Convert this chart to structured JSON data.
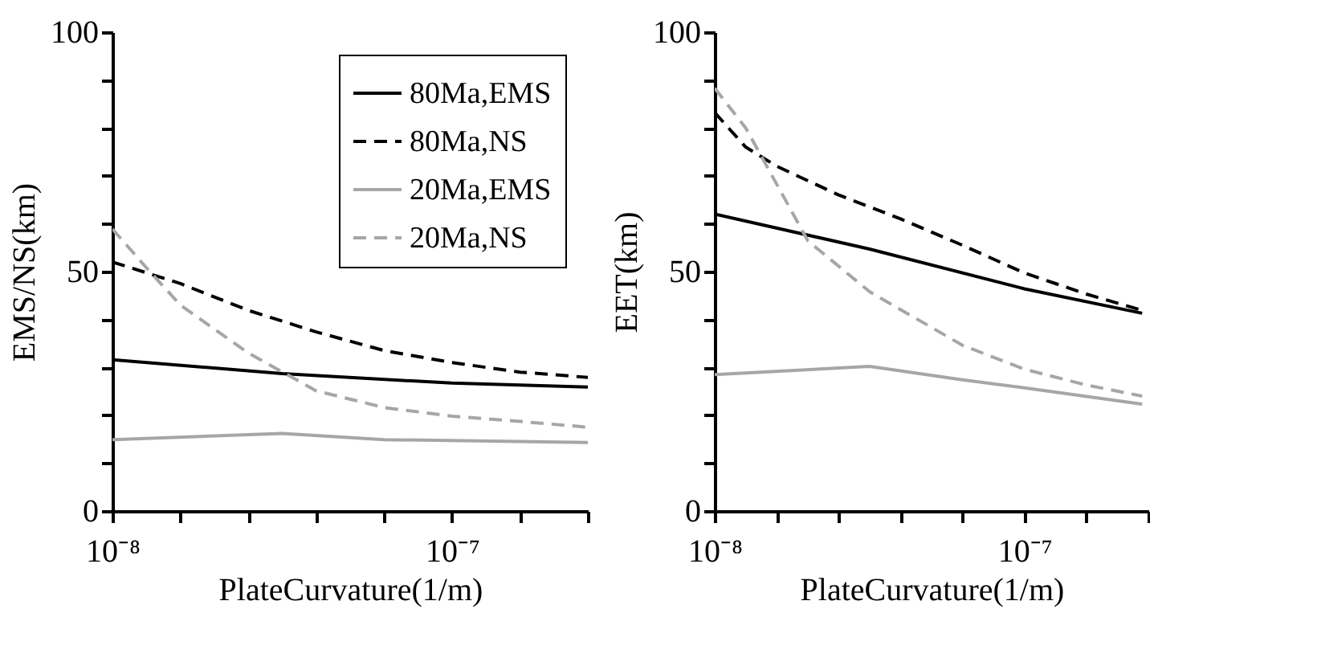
{
  "chart_data": [
    {
      "type": "line",
      "xlabel": "PlateCurvature(1/m)",
      "ylabel": "EMS/NS(km)",
      "log": "x",
      "grid": false,
      "legend": "top right",
      "xlim": [
        1e-08,
        2.512e-07
      ],
      "xticks": [
        {
          "value": 1e-08,
          "label": "10⁻⁸"
        },
        {
          "value": 1.585e-08,
          "label": null
        },
        {
          "value": 2.512e-08,
          "label": null
        },
        {
          "value": 3.981e-08,
          "label": null
        },
        {
          "value": 6.31e-08,
          "label": null
        },
        {
          "value": 1e-07,
          "label": "10⁻⁷"
        },
        {
          "value": 1.585e-07,
          "label": null
        },
        {
          "value": 2.512e-07,
          "label": null
        }
      ],
      "ylim": [
        0,
        100
      ],
      "yticks": [
        0,
        {
          "value": 10,
          "label": null
        },
        {
          "value": 20,
          "label": null
        },
        {
          "value": 30,
          "label": null
        },
        {
          "value": 40,
          "label": null
        },
        50,
        {
          "value": 60,
          "label": null
        },
        {
          "value": 70,
          "label": null
        },
        {
          "value": 80,
          "label": null
        },
        {
          "value": 90,
          "label": null
        },
        100
      ],
      "series": [
        {
          "name": "80Ma,EMS",
          "color": "#000000",
          "line_style": "solid",
          "x": [
            1e-08,
            3.162e-08,
            1e-07,
            2.512e-07
          ],
          "values": [
            31.6,
            28.7,
            26.7,
            25.9
          ]
        },
        {
          "name": "80Ma,NS",
          "color": "#000000",
          "line_style": "dashed",
          "x": [
            1e-08,
            1.585e-08,
            2.512e-08,
            3.981e-08,
            6.31e-08,
            1e-07,
            1.585e-07,
            2.512e-07
          ],
          "values": [
            52,
            47.5,
            41.9,
            37.4,
            33.5,
            31,
            29,
            27.9
          ]
        },
        {
          "name": "20Ma,EMS",
          "color": "#a6a6a6",
          "line_style": "solid",
          "x": [
            1e-08,
            3.162e-08,
            6.31e-08,
            2.512e-07
          ],
          "values": [
            14.9,
            16.2,
            14.9,
            14.3
          ]
        },
        {
          "name": "20Ma,NS",
          "color": "#a6a6a6",
          "line_style": "dashed",
          "x": [
            1e-08,
            1.259e-08,
            1.585e-08,
            2.512e-08,
            3.981e-08,
            6.31e-08,
            1e-07,
            1.585e-07,
            2.512e-07
          ],
          "values": [
            58.9,
            50.8,
            43,
            33,
            25.1,
            21.6,
            19.8,
            18.7,
            17.5
          ]
        }
      ]
    },
    {
      "type": "line",
      "xlabel": "PlateCurvature(1/m)",
      "ylabel": "EET(km)",
      "log": "x",
      "grid": false,
      "xlim": [
        1e-08,
        2.512e-07
      ],
      "xticks": [
        {
          "value": 1e-08,
          "label": "10⁻⁸"
        },
        {
          "value": 1.585e-08,
          "label": null
        },
        {
          "value": 2.512e-08,
          "label": null
        },
        {
          "value": 3.981e-08,
          "label": null
        },
        {
          "value": 6.31e-08,
          "label": null
        },
        {
          "value": 1e-07,
          "label": "10⁻⁷"
        },
        {
          "value": 1.585e-07,
          "label": null
        },
        {
          "value": 2.512e-07,
          "label": null
        }
      ],
      "ylim": [
        0,
        100
      ],
      "yticks": [
        0,
        {
          "value": 10,
          "label": null
        },
        {
          "value": 20,
          "label": null
        },
        {
          "value": 30,
          "label": null
        },
        {
          "value": 40,
          "label": null
        },
        50,
        {
          "value": 60,
          "label": null
        },
        {
          "value": 70,
          "label": null
        },
        {
          "value": 80,
          "label": null
        },
        {
          "value": 90,
          "label": null
        },
        100
      ],
      "series": [
        {
          "color": "#000000",
          "line_style": "solid",
          "x": [
            1e-08,
            3.162e-08,
            1e-07,
            2.399e-07
          ],
          "values": [
            62,
            54.7,
            46.4,
            41.3
          ]
        },
        {
          "color": "#000000",
          "line_style": "dashed",
          "x": [
            1e-08,
            1.259e-08,
            1.585e-08,
            2.512e-08,
            3.981e-08,
            6.31e-08,
            1e-07,
            1.585e-07,
            2.399e-07
          ],
          "values": [
            83.2,
            76,
            72,
            66,
            61,
            55.5,
            49.7,
            45.3,
            41.9
          ]
        },
        {
          "color": "#a6a6a6",
          "line_style": "solid",
          "x": [
            1e-08,
            3.162e-08,
            6.31e-08,
            1e-07,
            2.399e-07
          ],
          "values": [
            28.5,
            30.2,
            27.4,
            25.7,
            22.3
          ]
        },
        {
          "color": "#a6a6a6",
          "line_style": "dashed",
          "x": [
            1e-08,
            1.259e-08,
            2e-08,
            3.162e-08,
            6.31e-08,
            1e-07,
            1.585e-07,
            2.399e-07
          ],
          "values": [
            88.3,
            80,
            56.4,
            45.8,
            34.6,
            29.6,
            26.3,
            24
          ]
        }
      ]
    }
  ]
}
